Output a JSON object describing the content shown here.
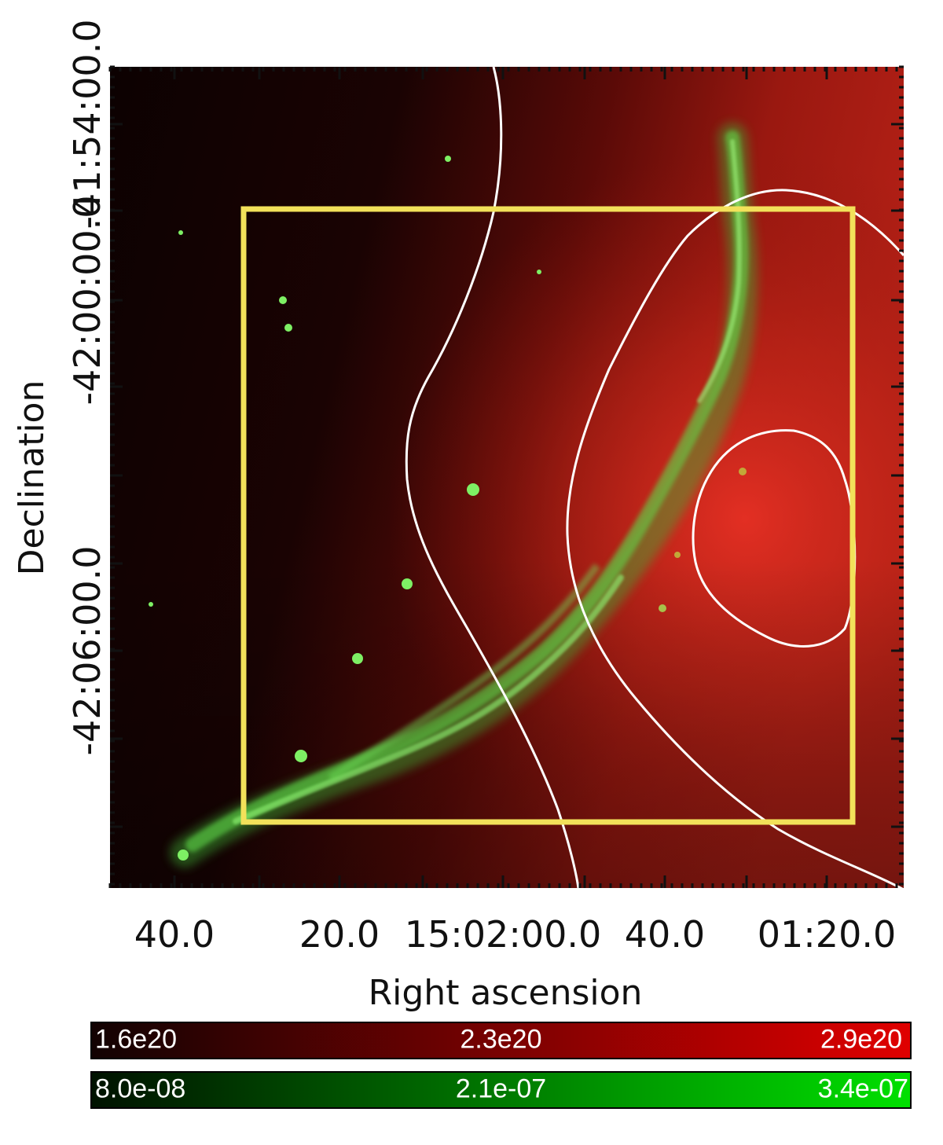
{
  "axes": {
    "xlabel": "Right ascension",
    "ylabel": "Declination",
    "x_ticks": [
      "40.0",
      "20.0",
      "15:02:00.0",
      "40.0",
      "01:20.0"
    ],
    "y_ticks": [
      "-41:54:00.0",
      "-42:00:00.0",
      "-42:06:00.0"
    ]
  },
  "colorbars": [
    {
      "name": "red-scale",
      "labels": [
        "1.6e20",
        "2.3e20",
        "2.9e20"
      ],
      "from": "#120202",
      "to": "#e00000"
    },
    {
      "name": "green-scale",
      "labels": [
        "8.0e-08",
        "2.1e-07",
        "3.4e-07"
      ],
      "from": "#001200",
      "to": "#00e000"
    }
  ],
  "colors": {
    "background_dark": "#1a0404",
    "background_bright": "#e63024",
    "filament": "#6ef05a",
    "region_box": "#f2e15a",
    "contour": "#ffffff"
  }
}
